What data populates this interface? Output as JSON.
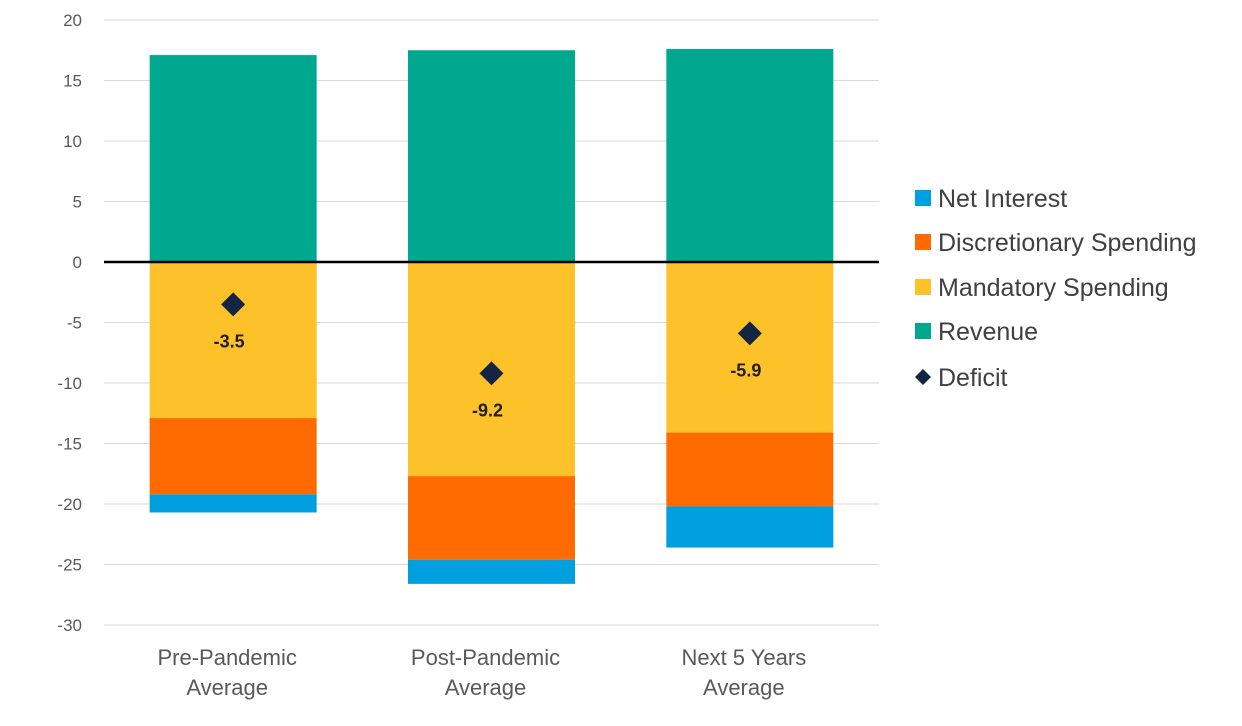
{
  "chart_data": {
    "type": "bar",
    "stacked": true,
    "categories": [
      [
        "Pre-Pandemic",
        "Average"
      ],
      [
        "Post-Pandemic",
        "Average"
      ],
      [
        "Next 5 Years",
        "Average"
      ]
    ],
    "series": [
      {
        "name": "Revenue",
        "color": "#00a88f",
        "values": [
          17.1,
          17.5,
          17.6
        ]
      },
      {
        "name": "Mandatory Spending",
        "color": "#fdc12a",
        "values": [
          -12.9,
          -17.7,
          -14.1
        ]
      },
      {
        "name": "Discretionary Spending",
        "color": "#ff6b00",
        "values": [
          -6.3,
          -6.9,
          -6.1
        ]
      },
      {
        "name": "Net Interest",
        "color": "#009fdf",
        "values": [
          -1.5,
          -2.0,
          -3.4
        ]
      }
    ],
    "deficit": {
      "name": "Deficit",
      "color": "#142543",
      "values": [
        -3.5,
        -9.2,
        -5.9
      ],
      "labels": [
        "-3.5",
        "-9.2",
        "-5.9"
      ]
    },
    "legend": [
      "Net Interest",
      "Discretionary Spending",
      "Mandatory Spending",
      "Revenue",
      "Deficit"
    ],
    "legend_position": "right",
    "ylim": [
      -30,
      20
    ],
    "yticks": [
      20,
      15,
      10,
      5,
      0,
      -5,
      -10,
      -15,
      -20,
      -25,
      -30
    ],
    "grid": true
  }
}
